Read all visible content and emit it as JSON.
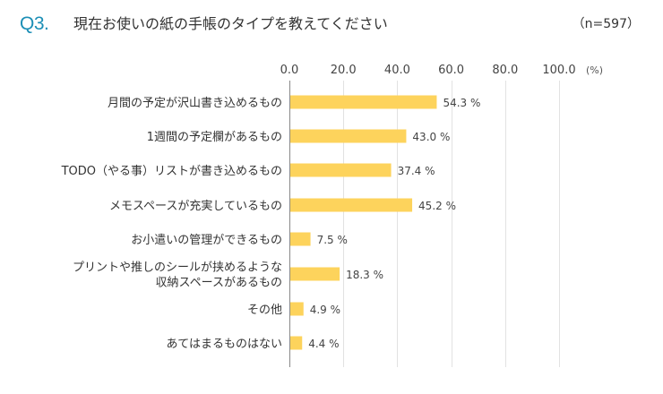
{
  "header": {
    "question_number": "Q3.",
    "title": "現在お使いの紙の手帳のタイプを教えてください",
    "sample_size": "（n=597）"
  },
  "chart_data": {
    "type": "bar",
    "orientation": "horizontal",
    "unit_label": "(%)",
    "xlim": [
      0,
      100
    ],
    "ticks": [
      "0.0",
      "20.0",
      "40.0",
      "60.0",
      "80.0",
      "100.0"
    ],
    "tick_values": [
      0,
      20,
      40,
      60,
      80,
      100
    ],
    "grid": true,
    "bar_color": "#fdd35c",
    "categories": [
      [
        "月間の予定が沢山書き込めるもの"
      ],
      [
        "1週間の予定欄があるもの"
      ],
      [
        "TODO（やる事）リストが書き込めるもの"
      ],
      [
        "メモスペースが充実しているもの"
      ],
      [
        "お小遣いの管理ができるもの"
      ],
      [
        "プリントや推しのシールが挟めるような",
        "収納スペースがあるもの"
      ],
      [
        "その他"
      ],
      [
        "あてはまるものはない"
      ]
    ],
    "values": [
      54.3,
      43.0,
      37.4,
      45.2,
      7.5,
      18.3,
      4.9,
      4.4
    ],
    "value_labels": [
      "54.3 %",
      "43.0 %",
      "37.4 %",
      "45.2 %",
      "7.5 %",
      "18.3 %",
      "4.9 %",
      "4.4 %"
    ]
  }
}
